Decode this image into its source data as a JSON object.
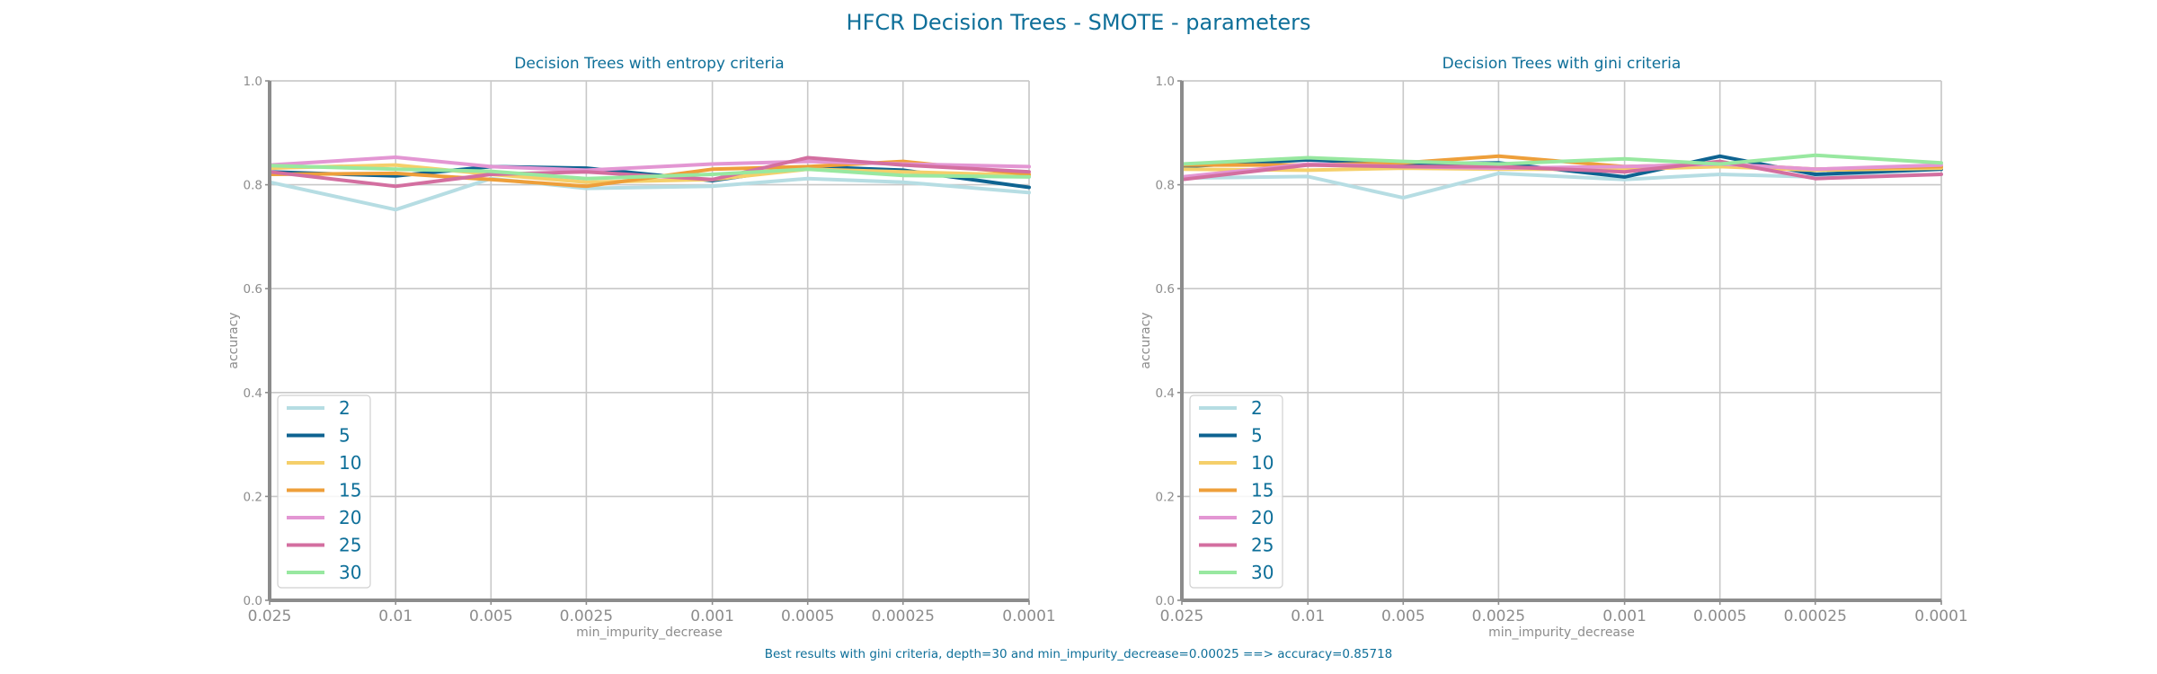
{
  "figure": {
    "title": "HFCR Decision Trees - SMOTE - parameters",
    "footer": "Best results with gini criteria, depth=30 and min_impurity_decrease=0.00025 ==> accuracy=0.85718",
    "title_color": "#0e6f99",
    "axis_color": "#8c8c8c",
    "grid_color": "#c8c8c8"
  },
  "chart_data": [
    {
      "type": "line",
      "title": "Decision Trees with entropy criteria",
      "xlabel": "min_impurity_decrease",
      "ylabel": "accuracy",
      "x_categories": [
        "0.025",
        "0.01",
        "0.005",
        "0.0025",
        "0.001",
        "0.0005",
        "0.00025",
        "0.0001"
      ],
      "x_values": [
        0.025,
        0.01,
        0.005,
        0.0025,
        0.001,
        0.0005,
        0.00025,
        0.0001
      ],
      "x_axis_reversed": true,
      "ylim": [
        0,
        1.0
      ],
      "yticks": [
        "0.0",
        "0.2",
        "0.4",
        "0.6",
        "0.8",
        "1.0"
      ],
      "grid": true,
      "legend_position": "lower-left",
      "series": [
        {
          "name": "2",
          "color": "#b6dde3",
          "values": [
            0.805,
            0.752,
            0.812,
            0.793,
            0.797,
            0.812,
            0.805,
            0.785
          ]
        },
        {
          "name": "5",
          "color": "#0e6391",
          "values": [
            0.825,
            0.817,
            0.835,
            0.832,
            0.808,
            0.835,
            0.828,
            0.795
          ]
        },
        {
          "name": "10",
          "color": "#f5cf6a",
          "values": [
            0.832,
            0.838,
            0.82,
            0.805,
            0.81,
            0.83,
            0.825,
            0.818
          ]
        },
        {
          "name": "15",
          "color": "#ee9f3a",
          "values": [
            0.82,
            0.822,
            0.81,
            0.797,
            0.83,
            0.835,
            0.845,
            0.82
          ]
        },
        {
          "name": "20",
          "color": "#e396d3",
          "values": [
            0.838,
            0.853,
            0.835,
            0.828,
            0.84,
            0.845,
            0.84,
            0.835
          ]
        },
        {
          "name": "25",
          "color": "#d36fa0",
          "values": [
            0.825,
            0.797,
            0.82,
            0.825,
            0.81,
            0.852,
            0.838,
            0.825
          ]
        },
        {
          "name": "30",
          "color": "#98e8a0",
          "values": [
            0.837,
            0.83,
            0.826,
            0.812,
            0.82,
            0.83,
            0.818,
            0.815
          ]
        }
      ]
    },
    {
      "type": "line",
      "title": "Decision Trees with gini criteria",
      "xlabel": "min_impurity_decrease",
      "ylabel": "accuracy",
      "x_categories": [
        "0.025",
        "0.01",
        "0.005",
        "0.0025",
        "0.001",
        "0.0005",
        "0.00025",
        "0.0001"
      ],
      "x_values": [
        0.025,
        0.01,
        0.005,
        0.0025,
        0.001,
        0.0005,
        0.00025,
        0.0001
      ],
      "x_axis_reversed": true,
      "ylim": [
        0,
        1.0
      ],
      "yticks": [
        "0.0",
        "0.2",
        "0.4",
        "0.6",
        "0.8",
        "1.0"
      ],
      "grid": true,
      "legend_position": "lower-left",
      "series": [
        {
          "name": "2",
          "color": "#b6dde3",
          "values": [
            0.813,
            0.816,
            0.775,
            0.822,
            0.81,
            0.82,
            0.815,
            0.82
          ]
        },
        {
          "name": "5",
          "color": "#0e6391",
          "values": [
            0.835,
            0.848,
            0.84,
            0.842,
            0.815,
            0.855,
            0.82,
            0.83
          ]
        },
        {
          "name": "10",
          "color": "#f5cf6a",
          "values": [
            0.83,
            0.828,
            0.832,
            0.83,
            0.83,
            0.835,
            0.828,
            0.832
          ]
        },
        {
          "name": "15",
          "color": "#ee9f3a",
          "values": [
            0.838,
            0.838,
            0.842,
            0.855,
            0.835,
            0.84,
            0.83,
            0.835
          ]
        },
        {
          "name": "20",
          "color": "#e396d3",
          "values": [
            0.815,
            0.84,
            0.835,
            0.832,
            0.835,
            0.84,
            0.83,
            0.838
          ]
        },
        {
          "name": "25",
          "color": "#d36fa0",
          "values": [
            0.81,
            0.838,
            0.835,
            0.835,
            0.825,
            0.845,
            0.812,
            0.82
          ]
        },
        {
          "name": "30",
          "color": "#98e8a0",
          "values": [
            0.84,
            0.852,
            0.845,
            0.84,
            0.85,
            0.84,
            0.857,
            0.842
          ]
        }
      ]
    }
  ]
}
